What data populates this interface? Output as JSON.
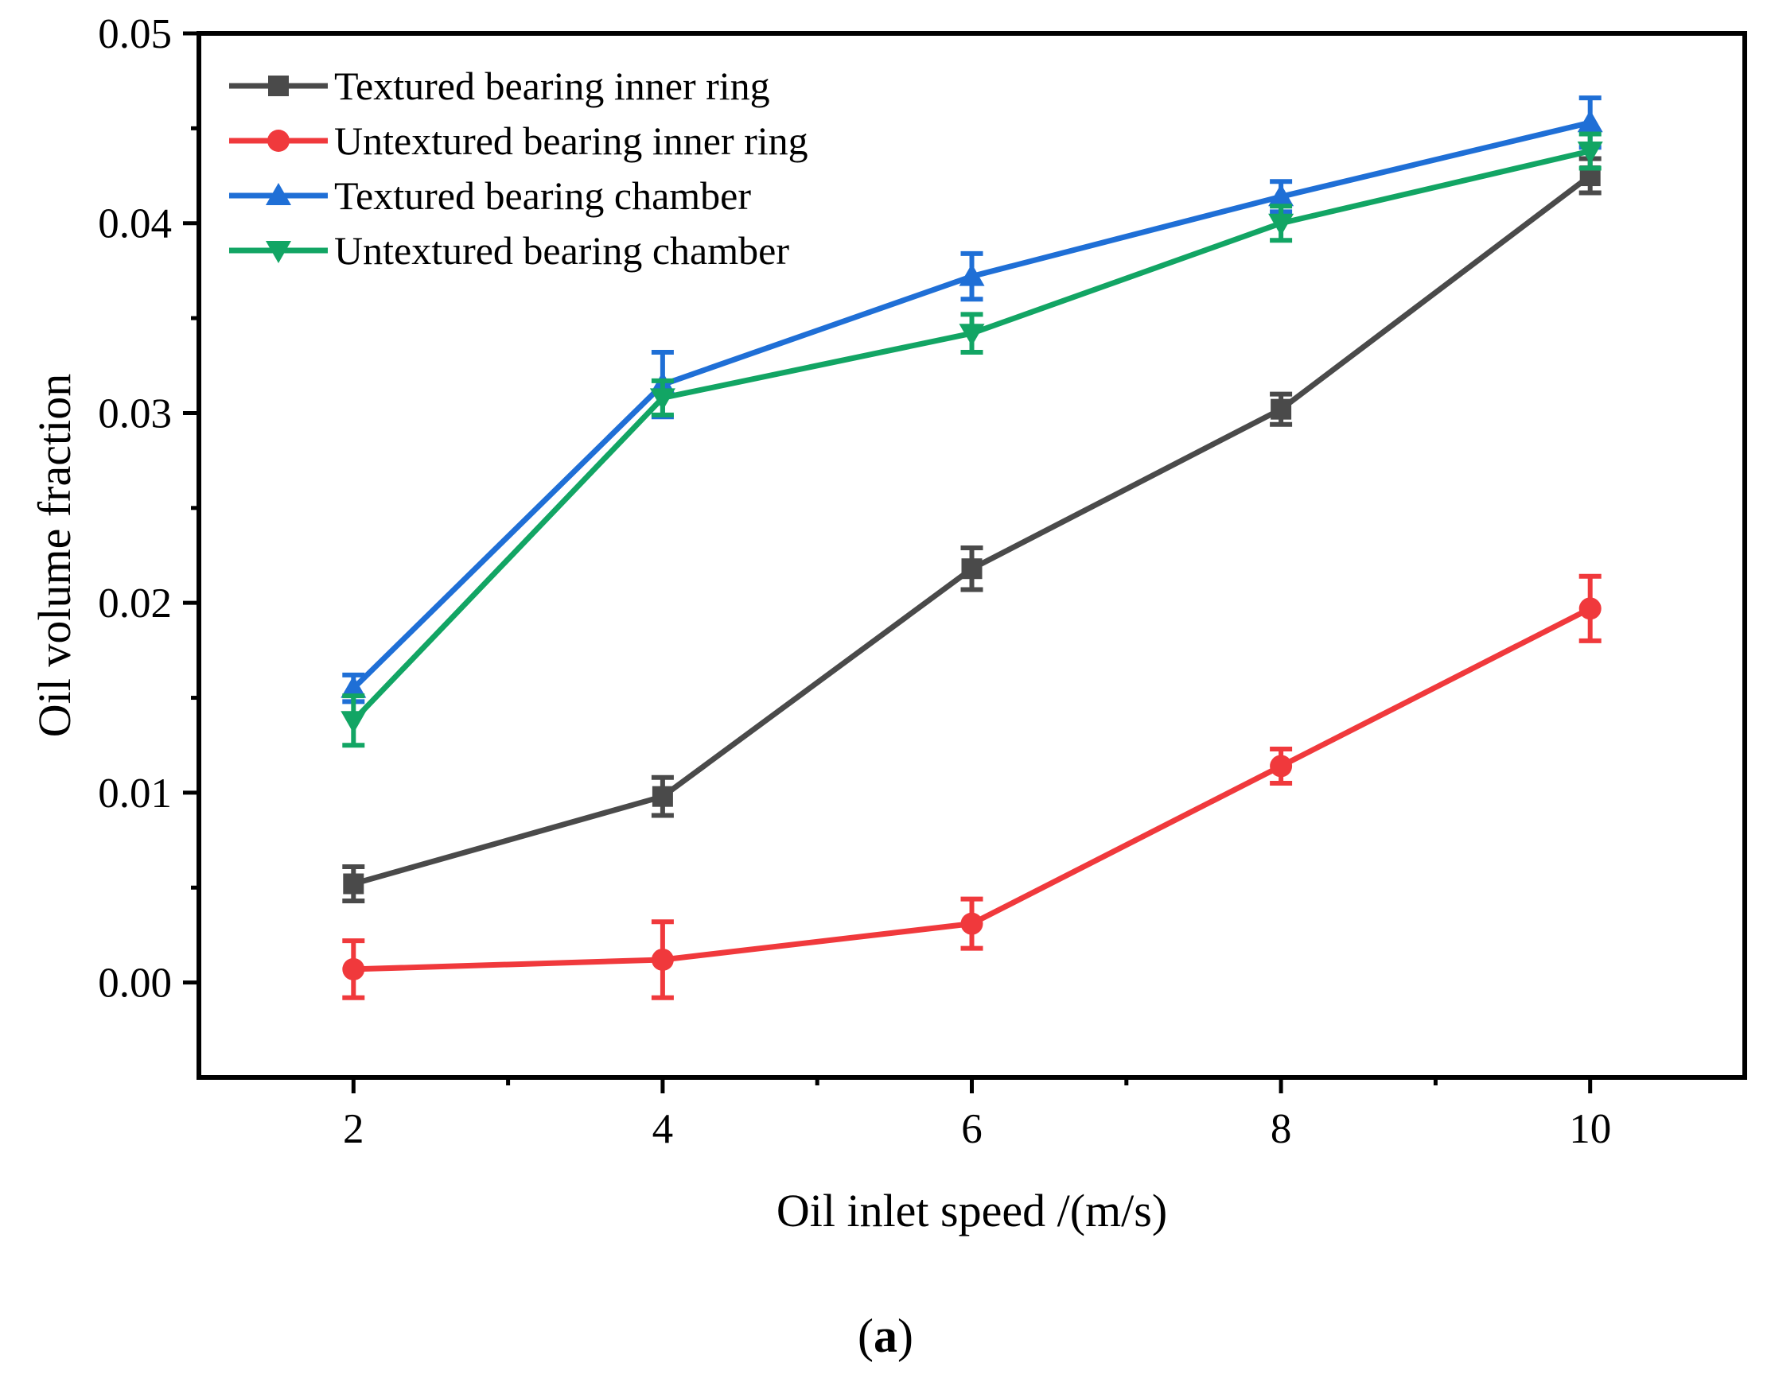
{
  "chart_data": {
    "type": "line",
    "title": "",
    "xlabel": "Oil inlet speed /(m/s)",
    "ylabel": "Oil volume fraction",
    "caption": {
      "open": "(",
      "letter": "a",
      "close": ")"
    },
    "x": [
      2,
      4,
      6,
      8,
      10
    ],
    "xlim": [
      1,
      11
    ],
    "ylim": [
      -0.005,
      0.05
    ],
    "xticks": [
      2,
      4,
      6,
      8,
      10
    ],
    "xtick_labels": [
      "2",
      "4",
      "6",
      "8",
      "10"
    ],
    "yticks": [
      0.0,
      0.01,
      0.02,
      0.03,
      0.04,
      0.05
    ],
    "ytick_labels": [
      "0.00",
      "0.01",
      "0.02",
      "0.03",
      "0.04",
      "0.05"
    ],
    "grid": false,
    "legend_position": "top-left",
    "series": [
      {
        "name": "Textured bearing inner ring",
        "color": "#4a4a4a",
        "marker": "square",
        "values": [
          0.0052,
          0.0098,
          0.0218,
          0.0302,
          0.0425
        ],
        "errors": [
          0.0009,
          0.001,
          0.0011,
          0.0008,
          0.0009
        ]
      },
      {
        "name": "Untextured bearing inner ring",
        "color": "#f0393c",
        "marker": "circle",
        "values": [
          0.0007,
          0.0012,
          0.0031,
          0.0114,
          0.0197
        ],
        "errors": [
          0.0015,
          0.002,
          0.0013,
          0.0009,
          0.0017
        ]
      },
      {
        "name": "Textured bearing chamber",
        "color": "#1f6fd6",
        "marker": "triangle-up",
        "values": [
          0.0155,
          0.0315,
          0.0372,
          0.0414,
          0.0453
        ],
        "errors": [
          0.0007,
          0.0017,
          0.0012,
          0.0008,
          0.0013
        ]
      },
      {
        "name": "Untextured bearing chamber",
        "color": "#12a564",
        "marker": "triangle-down",
        "values": [
          0.0138,
          0.0308,
          0.0342,
          0.04,
          0.0438
        ],
        "errors": [
          0.0013,
          0.0009,
          0.001,
          0.0009,
          0.0009
        ]
      }
    ]
  }
}
